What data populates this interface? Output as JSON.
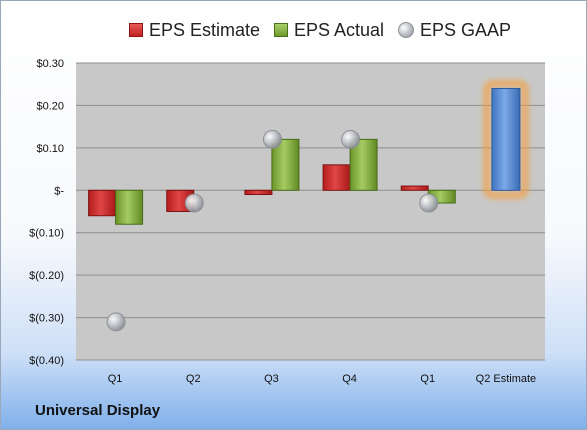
{
  "chart_data": {
    "type": "bar",
    "categories": [
      "Q1",
      "Q2",
      "Q3",
      "Q4",
      "Q1",
      "Q2 Estimate"
    ],
    "series": [
      {
        "name": "EPS Estimate",
        "type": "bar",
        "color": "#d42b2b",
        "values": [
          -0.06,
          -0.05,
          -0.01,
          0.06,
          0.01,
          null
        ]
      },
      {
        "name": "EPS Actual",
        "type": "bar",
        "color": "#8ab446",
        "values": [
          -0.08,
          null,
          0.12,
          0.12,
          -0.03,
          null
        ]
      },
      {
        "name": "EPS GAAP",
        "type": "scatter",
        "color": "#a9acb2",
        "values": [
          -0.31,
          -0.03,
          0.12,
          0.12,
          -0.03,
          null
        ]
      },
      {
        "name": "Q2 Estimate",
        "type": "bar",
        "color": "#5b8fd6",
        "highlight": "#f5a040",
        "values": [
          null,
          null,
          null,
          null,
          null,
          0.24
        ]
      }
    ],
    "ylim": [
      -0.4,
      0.3
    ],
    "yticks": [
      0.3,
      0.2,
      0.1,
      0,
      -0.1,
      -0.2,
      -0.3,
      -0.4
    ],
    "ytick_labels": [
      "$0.30",
      "$0.20",
      "$0.10",
      "$-",
      "$(0.10)",
      "$(0.20)",
      "$(0.30)",
      "$(0.40)"
    ],
    "grid": true,
    "legend_position": "top",
    "title": "",
    "xlabel": "",
    "ylabel": ""
  },
  "legend": {
    "estimate": "EPS Estimate",
    "actual": "EPS Actual",
    "gaap": "EPS GAAP"
  },
  "company_name": "Universal Display"
}
